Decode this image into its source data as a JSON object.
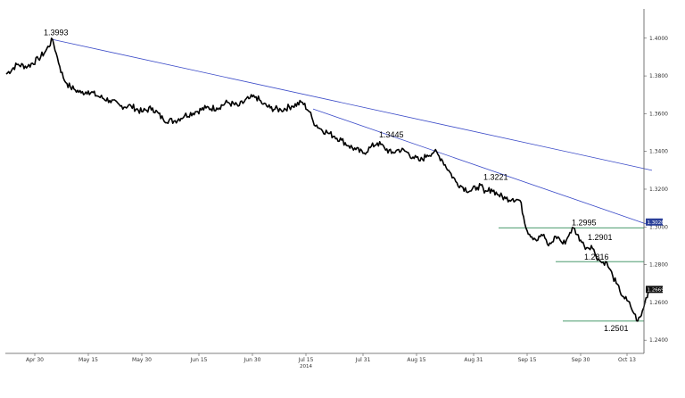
{
  "chart_data": {
    "type": "line",
    "title": "",
    "xlabel": "",
    "ylabel": "",
    "year_label": "2014",
    "x_ticks": [
      "Apr 30",
      "May 15",
      "May 30",
      "Jun 15",
      "Jun 30",
      "Jul 15",
      "Jul 31",
      "Aug 15",
      "Aug 31",
      "Sep 15",
      "Sep 30",
      "Oct 13"
    ],
    "x_tick_days": [
      0,
      15,
      30,
      46,
      61,
      76,
      92,
      107,
      123,
      138,
      153,
      166
    ],
    "y_ticks": [
      "1.4000",
      "1.3800",
      "1.3600",
      "1.3400",
      "1.3200",
      "1.3000",
      "1.2800",
      "1.2600",
      "1.2400"
    ],
    "y_tick_values": [
      1.4,
      1.38,
      1.36,
      1.34,
      1.32,
      1.3,
      1.28,
      1.26,
      1.24
    ],
    "ylim": [
      1.233,
      1.4155
    ],
    "series": [
      {
        "values_x": [
          -8,
          -5,
          -2,
          1,
          3,
          5,
          6,
          7,
          8,
          9,
          10,
          11,
          13,
          15,
          18,
          21,
          24,
          27,
          30,
          33,
          36,
          39,
          42,
          45,
          48,
          51,
          54,
          57,
          60,
          62,
          64,
          66,
          69,
          72,
          75,
          77,
          78,
          80,
          82,
          84,
          86,
          88,
          90,
          92,
          94,
          96,
          98,
          100,
          102,
          104,
          106,
          108,
          110,
          112,
          114,
          116,
          118,
          120,
          122,
          124,
          125,
          126,
          127,
          128,
          130,
          132,
          134,
          136,
          138,
          140,
          141,
          142,
          143,
          144,
          145,
          146,
          147,
          148,
          149,
          150,
          151,
          152,
          153,
          154,
          155,
          156,
          157,
          158,
          159,
          160,
          161,
          162,
          163,
          164,
          165,
          166,
          167,
          168,
          169,
          170,
          171,
          172,
          173
        ],
        "values_y": [
          1.381,
          1.386,
          1.385,
          1.389,
          1.393,
          1.3993,
          1.392,
          1.385,
          1.379,
          1.376,
          1.374,
          1.373,
          1.371,
          1.372,
          1.369,
          1.367,
          1.364,
          1.364,
          1.361,
          1.363,
          1.357,
          1.356,
          1.359,
          1.361,
          1.363,
          1.363,
          1.366,
          1.364,
          1.368,
          1.369,
          1.365,
          1.363,
          1.362,
          1.364,
          1.366,
          1.361,
          1.356,
          1.352,
          1.35,
          1.348,
          1.346,
          1.343,
          1.341,
          1.339,
          1.342,
          1.3445,
          1.342,
          1.339,
          1.341,
          1.34,
          1.337,
          1.335,
          1.338,
          1.34,
          1.336,
          1.33,
          1.324,
          1.321,
          1.319,
          1.321,
          1.3221,
          1.318,
          1.319,
          1.32,
          1.317,
          1.315,
          1.315,
          1.314,
          1.298,
          1.294,
          1.293,
          1.296,
          1.294,
          1.29,
          1.292,
          1.295,
          1.294,
          1.291,
          1.293,
          1.297,
          1.2995,
          1.296,
          1.293,
          1.29,
          1.289,
          1.2901,
          1.286,
          1.283,
          1.281,
          1.2816,
          1.278,
          1.274,
          1.27,
          1.266,
          1.263,
          1.261,
          1.258,
          1.254,
          1.2501,
          1.253,
          1.26,
          1.266,
          1.268
        ]
      }
    ],
    "trendlines": [
      {
        "from": [
          5,
          1.3993
        ],
        "to": [
          173,
          1.33
        ]
      },
      {
        "from": [
          78,
          1.3625
        ],
        "to": [
          173,
          1.3005
        ]
      }
    ],
    "support_lines": [
      {
        "y": 1.2995,
        "x_from": 130,
        "x_to": 173,
        "color": "#2e8b57"
      },
      {
        "y": 1.2816,
        "x_from": 146,
        "x_to": 173,
        "color": "#2e8b57"
      },
      {
        "y": 1.2501,
        "x_from": 148,
        "x_to": 173,
        "color": "#2e8b57"
      }
    ],
    "annotations": [
      {
        "text": "1.3993",
        "x": 5,
        "y": 1.3993
      },
      {
        "text": "1.3445",
        "x": 96,
        "y": 1.3445
      },
      {
        "text": "1.3221",
        "x": 125,
        "y": 1.3221
      },
      {
        "text": "1.2995",
        "x": 150,
        "y": 1.2995
      },
      {
        "text": "1.2901",
        "x": 154,
        "y": 1.2901
      },
      {
        "text": "1.2816",
        "x": 157,
        "y": 1.2816
      },
      {
        "text": "1.2501",
        "x": 162,
        "y": 1.2501
      }
    ],
    "badges": [
      {
        "text": "1.3026",
        "y": 1.3026,
        "color": "#2a3f99"
      },
      {
        "text": "1.2669",
        "y": 1.2669,
        "color": "#111111"
      }
    ],
    "colors": {
      "price": "#000000",
      "trendline": "#3b4bc8",
      "support": "#2e8b57"
    }
  }
}
